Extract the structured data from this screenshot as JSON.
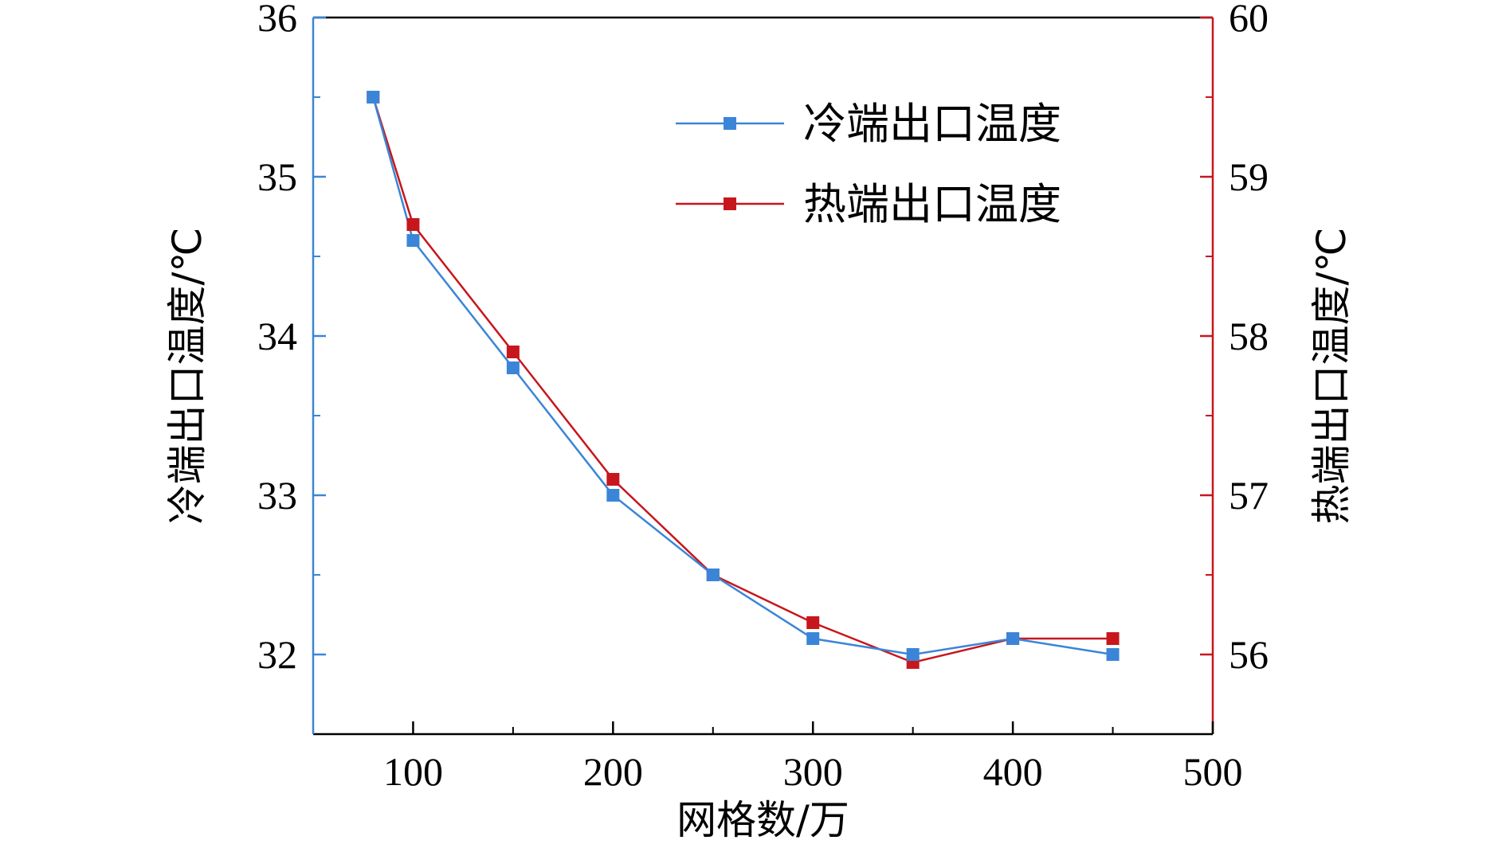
{
  "chart_data": {
    "type": "line",
    "title": "",
    "xlabel": "网格数/万",
    "ylabel_left": "冷端出口温度/℃",
    "ylabel_right": "热端出口温度/℃",
    "xlim": [
      50,
      500
    ],
    "ylim_left": [
      31.5,
      36
    ],
    "ylim_right": [
      55.5,
      60
    ],
    "x_ticks": [
      100,
      200,
      300,
      400,
      500
    ],
    "x_tick_labels": [
      "100",
      "200",
      "300",
      "400",
      "500"
    ],
    "y_left_ticks": [
      32,
      33,
      34,
      35,
      36
    ],
    "y_left_tick_labels": [
      "32",
      "33",
      "34",
      "35",
      "36"
    ],
    "y_right_ticks": [
      56,
      57,
      58,
      59,
      60
    ],
    "y_right_tick_labels": [
      "56",
      "57",
      "58",
      "59",
      "60"
    ],
    "grid": false,
    "legend_position": "top-right",
    "colors": {
      "cold": "#3b85d8",
      "hot": "#c8161d",
      "axis": "#000000"
    },
    "series": [
      {
        "name": "冷端出口温度",
        "axis": "left",
        "color": "#3b85d8",
        "x": [
          80,
          100,
          150,
          200,
          250,
          300,
          350,
          400,
          450
        ],
        "values": [
          35.5,
          34.6,
          33.8,
          33.0,
          32.5,
          32.1,
          32.0,
          32.1,
          32.0
        ]
      },
      {
        "name": "热端出口温度",
        "axis": "right",
        "color": "#c8161d",
        "x": [
          80,
          100,
          150,
          200,
          250,
          300,
          350,
          400,
          450
        ],
        "values": [
          59.5,
          58.7,
          57.9,
          57.1,
          56.5,
          56.2,
          55.95,
          56.1,
          56.1
        ]
      }
    ]
  }
}
